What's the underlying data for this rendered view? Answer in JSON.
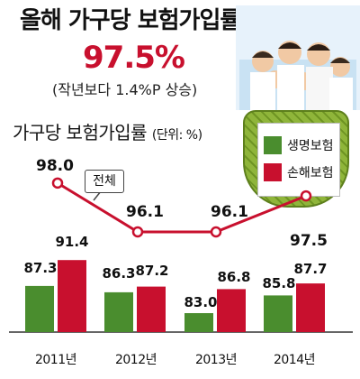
{
  "header": {
    "title": "올해 가구당 보험가입률",
    "highlight": "97.5%",
    "subtitle": "(작년보다 1.4%P 상승)"
  },
  "chart_data": {
    "type": "bar",
    "title": "가구당 보험가입률",
    "unit_label": "(단위: %)",
    "categories": [
      "2011년",
      "2012년",
      "2013년",
      "2014년"
    ],
    "series": [
      {
        "name": "생명보험",
        "color": "#4a8d2e",
        "values": [
          87.3,
          86.3,
          83.0,
          85.8
        ]
      },
      {
        "name": "손해보험",
        "color": "#c8102e",
        "values": [
          91.4,
          87.2,
          86.8,
          87.7
        ]
      }
    ],
    "overlay_line": {
      "name": "전체",
      "color": "#c8102e",
      "values": [
        98.0,
        96.1,
        96.1,
        97.5
      ]
    },
    "legend_position": "top-right",
    "grid": false
  },
  "labels": {
    "bar_values": {
      "life": [
        "87.3",
        "86.3",
        "83.0",
        "85.8"
      ],
      "nonlife": [
        "91.4",
        "87.2",
        "86.8",
        "87.7"
      ]
    },
    "line_values": [
      "98.0",
      "96.1",
      "96.1",
      "97.5"
    ]
  }
}
